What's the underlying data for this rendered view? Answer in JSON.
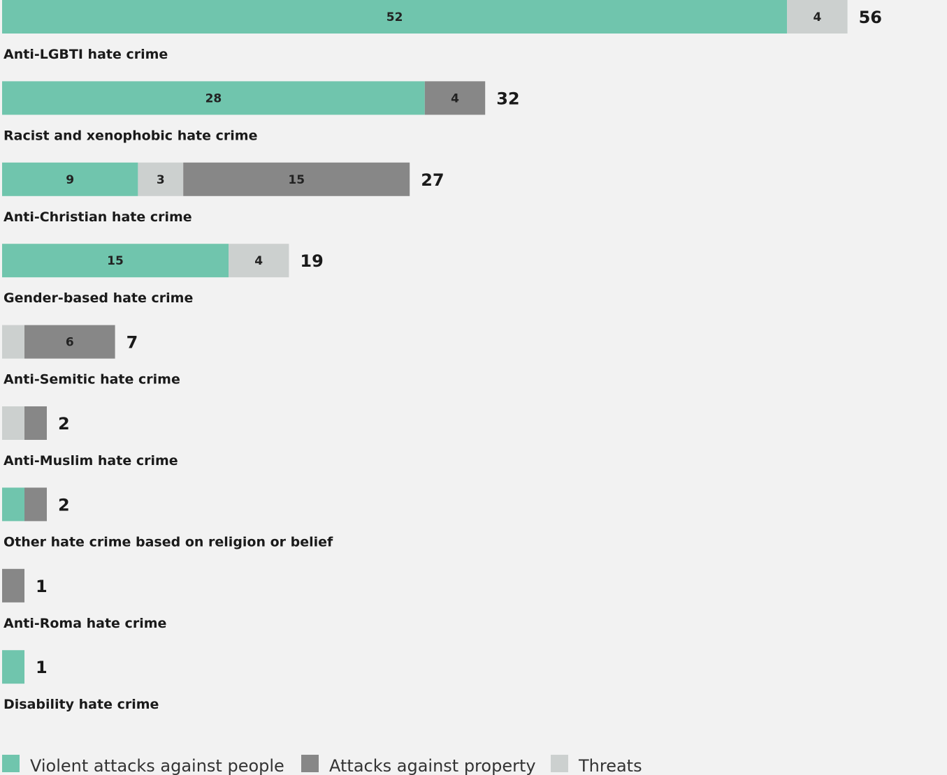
{
  "chart_data": {
    "type": "bar",
    "orientation": "horizontal",
    "stacked": true,
    "categories": [
      "Anti-LGBTI hate crime",
      "Racist and xenophobic hate crime",
      "Anti-Christian hate crime",
      "Gender-based hate crime",
      "Anti-Semitic hate crime",
      "Anti-Muslim hate crime",
      "Other hate crime based on religion or belief",
      "Anti-Roma hate crime",
      "Disability hate crime"
    ],
    "series": [
      {
        "name": "Violent attacks against people",
        "color": "#70c5ad",
        "values": [
          52,
          28,
          9,
          15,
          0,
          0,
          1,
          0,
          1
        ]
      },
      {
        "name": "Threats",
        "color": "#ccd0cf",
        "values": [
          4,
          0,
          3,
          4,
          1,
          1,
          0,
          0,
          0
        ]
      },
      {
        "name": "Attacks against property",
        "color": "#878787",
        "values": [
          0,
          4,
          15,
          0,
          6,
          1,
          1,
          1,
          0
        ]
      }
    ],
    "totals": [
      56,
      32,
      27,
      19,
      7,
      2,
      2,
      1,
      1
    ],
    "legend_order": [
      "Violent attacks against people",
      "Attacks against property",
      "Threats"
    ],
    "legend_position": "bottom-left",
    "grid": false,
    "xlim": [
      0,
      56
    ]
  }
}
